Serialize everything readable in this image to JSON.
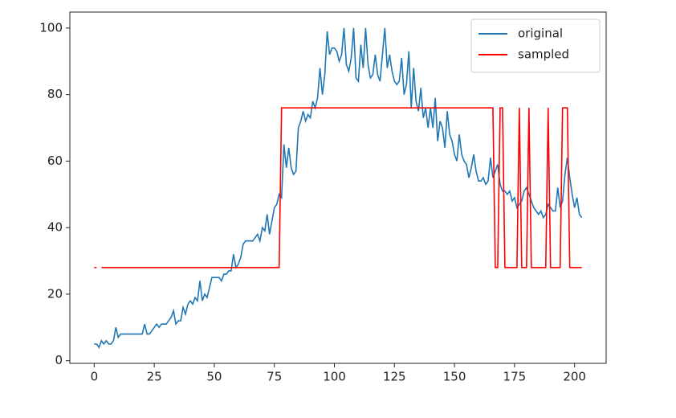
{
  "chart_data": {
    "type": "line",
    "x": [
      0,
      1,
      2,
      3,
      4,
      5,
      6,
      7,
      8,
      9,
      10,
      11,
      12,
      13,
      14,
      15,
      16,
      17,
      18,
      19,
      20,
      21,
      22,
      23,
      24,
      25,
      26,
      27,
      28,
      29,
      30,
      31,
      32,
      33,
      34,
      35,
      36,
      37,
      38,
      39,
      40,
      41,
      42,
      43,
      44,
      45,
      46,
      47,
      48,
      49,
      50,
      51,
      52,
      53,
      54,
      55,
      56,
      57,
      58,
      59,
      60,
      61,
      62,
      63,
      64,
      65,
      66,
      67,
      68,
      69,
      70,
      71,
      72,
      73,
      74,
      75,
      76,
      77,
      78,
      79,
      80,
      81,
      82,
      83,
      84,
      85,
      86,
      87,
      88,
      89,
      90,
      91,
      92,
      93,
      94,
      95,
      96,
      97,
      98,
      99,
      100,
      101,
      102,
      103,
      104,
      105,
      106,
      107,
      108,
      109,
      110,
      111,
      112,
      113,
      114,
      115,
      116,
      117,
      118,
      119,
      120,
      121,
      122,
      123,
      124,
      125,
      126,
      127,
      128,
      129,
      130,
      131,
      132,
      133,
      134,
      135,
      136,
      137,
      138,
      139,
      140,
      141,
      142,
      143,
      144,
      145,
      146,
      147,
      148,
      149,
      150,
      151,
      152,
      153,
      154,
      155,
      156,
      157,
      158,
      159,
      160,
      161,
      162,
      163,
      164,
      165,
      166,
      167,
      168,
      169,
      170,
      171,
      172,
      173,
      174,
      175,
      176,
      177,
      178,
      179,
      180,
      181,
      182,
      183,
      184,
      185,
      186,
      187,
      188,
      189,
      190,
      191,
      192,
      193,
      194,
      195,
      196,
      197,
      198,
      199,
      200,
      201,
      202,
      203
    ],
    "series": [
      {
        "name": "original",
        "color": "#1f77b4",
        "values": [
          5,
          5,
          4,
          6,
          5,
          6,
          5,
          5,
          6,
          10,
          7,
          8,
          8,
          8,
          8,
          8,
          8,
          8,
          8,
          8,
          8,
          11,
          8,
          8,
          9,
          10,
          11,
          10,
          11,
          11,
          11,
          12,
          13,
          15,
          11,
          12,
          12,
          16,
          14,
          17,
          18,
          17,
          19,
          18,
          24,
          18,
          20,
          19,
          22,
          25,
          25,
          25,
          25,
          24,
          26,
          26,
          27,
          27,
          32,
          28,
          29,
          31,
          35,
          36,
          36,
          36,
          36,
          37,
          38,
          36,
          40,
          39,
          44,
          38,
          42,
          46,
          47,
          50,
          49,
          65,
          58,
          64,
          58,
          56,
          57,
          70,
          72,
          75,
          72,
          74,
          73,
          78,
          76,
          79,
          88,
          80,
          86,
          99,
          92,
          94,
          94,
          93,
          90,
          92,
          100,
          89,
          87,
          91,
          100,
          85,
          84,
          95,
          88,
          100,
          89,
          85,
          86,
          92,
          86,
          84,
          92,
          100,
          88,
          92,
          87,
          84,
          83,
          84,
          91,
          80,
          83,
          93,
          76,
          88,
          78,
          75,
          82,
          73,
          76,
          70,
          76,
          70,
          79,
          66,
          72,
          70,
          64,
          75,
          68,
          66,
          62,
          60,
          68,
          62,
          60,
          59,
          55,
          58,
          62,
          57,
          54,
          54,
          55,
          53,
          54,
          61,
          55,
          57,
          59,
          53,
          51,
          51,
          50,
          51,
          48,
          49,
          46,
          47,
          48,
          51,
          52,
          50,
          48,
          46,
          45,
          44,
          45,
          43,
          44,
          47,
          46,
          45,
          45,
          52,
          46,
          48,
          56,
          61,
          55,
          50,
          46,
          49,
          44,
          43
        ]
      },
      {
        "name": "sampled",
        "color": "#ff0000",
        "values": [
          28,
          28,
          null,
          28,
          28,
          28,
          28,
          28,
          28,
          28,
          28,
          28,
          28,
          28,
          28,
          28,
          28,
          28,
          28,
          28,
          28,
          28,
          28,
          28,
          28,
          28,
          28,
          28,
          28,
          28,
          28,
          28,
          28,
          28,
          28,
          28,
          28,
          28,
          28,
          28,
          28,
          28,
          28,
          28,
          28,
          28,
          28,
          28,
          28,
          28,
          28,
          28,
          28,
          28,
          28,
          28,
          28,
          28,
          28,
          28,
          28,
          28,
          28,
          28,
          28,
          28,
          28,
          28,
          28,
          28,
          28,
          28,
          28,
          28,
          28,
          28,
          28,
          28,
          76,
          76,
          76,
          76,
          76,
          76,
          76,
          76,
          76,
          76,
          76,
          76,
          76,
          76,
          76,
          76,
          76,
          76,
          76,
          76,
          76,
          76,
          76,
          76,
          76,
          76,
          76,
          76,
          76,
          76,
          76,
          76,
          76,
          76,
          76,
          76,
          76,
          76,
          76,
          76,
          76,
          76,
          76,
          76,
          76,
          76,
          76,
          76,
          76,
          76,
          76,
          76,
          76,
          76,
          76,
          76,
          76,
          76,
          76,
          76,
          76,
          76,
          76,
          76,
          76,
          76,
          76,
          76,
          76,
          76,
          76,
          76,
          76,
          76,
          76,
          76,
          76,
          76,
          76,
          76,
          76,
          76,
          76,
          76,
          76,
          76,
          76,
          76,
          76,
          28,
          28,
          76,
          76,
          28,
          28,
          28,
          28,
          28,
          28,
          76,
          28,
          28,
          28,
          76,
          28,
          28,
          28,
          28,
          28,
          28,
          28,
          76,
          28,
          28,
          28,
          28,
          28,
          76,
          76,
          76,
          28,
          28,
          28,
          28,
          28,
          28
        ]
      }
    ],
    "xlim": [
      -10.15,
      213.15
    ],
    "ylim": [
      -0.8,
      104.8
    ],
    "xticks": [
      0,
      25,
      50,
      75,
      100,
      125,
      150,
      175,
      200
    ],
    "yticks": [
      0,
      20,
      40,
      60,
      80,
      100
    ],
    "legend": "upper right",
    "grid": false
  }
}
